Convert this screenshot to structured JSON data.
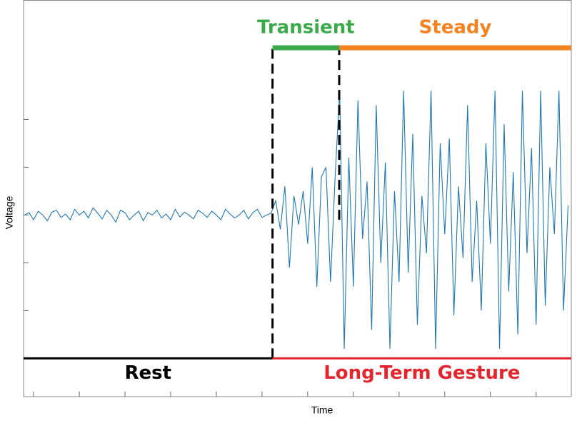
{
  "chart_data": {
    "type": "line",
    "x_label": "Time",
    "y_label": "Voltage",
    "xlim": [
      -22,
      1177
    ],
    "ylim": [
      -3.8,
      4.5
    ],
    "xticks": [
      0,
      100,
      200,
      300,
      400,
      500,
      600,
      700,
      800,
      900,
      1000,
      1100
    ],
    "yticks": [
      -2,
      -1,
      0,
      1,
      2
    ],
    "series": [
      {
        "color": "#1f77b4",
        "x": [
          -20,
          -10,
          0,
          10,
          20,
          30,
          40,
          50,
          60,
          70,
          80,
          90,
          100,
          110,
          120,
          130,
          140,
          150,
          160,
          170,
          180,
          190,
          200,
          210,
          220,
          230,
          240,
          250,
          260,
          270,
          280,
          290,
          300,
          310,
          320,
          330,
          340,
          350,
          360,
          370,
          380,
          390,
          400,
          410,
          420,
          430,
          440,
          450,
          460,
          470,
          480,
          490,
          500,
          510,
          520,
          530,
          540,
          550,
          560,
          570,
          580,
          590,
          600,
          610,
          620,
          630,
          640,
          650,
          660,
          670,
          680,
          690,
          700,
          710,
          720,
          730,
          740,
          750,
          760,
          770,
          780,
          790,
          800,
          810,
          820,
          830,
          840,
          850,
          860,
          870,
          880,
          890,
          900,
          910,
          920,
          930,
          940,
          950,
          960,
          970,
          980,
          990,
          1000,
          1010,
          1020,
          1030,
          1040,
          1050,
          1060,
          1070,
          1080,
          1090,
          1100,
          1110,
          1120,
          1130,
          1140,
          1150,
          1160,
          1170
        ],
        "values": [
          0.0,
          0.05,
          -0.1,
          0.08,
          0.0,
          -0.12,
          0.06,
          0.1,
          -0.05,
          0.02,
          -0.1,
          0.12,
          0.0,
          0.08,
          -0.06,
          0.15,
          0.04,
          -0.08,
          0.1,
          0.0,
          -0.15,
          0.1,
          0.05,
          -0.1,
          0.0,
          0.08,
          -0.12,
          0.05,
          0.0,
          0.1,
          -0.06,
          0.02,
          -0.1,
          0.12,
          -0.04,
          0.06,
          0.0,
          -0.08,
          0.1,
          0.04,
          -0.05,
          0.08,
          0.0,
          -0.1,
          0.12,
          0.02,
          -0.06,
          0.0,
          0.1,
          -0.08,
          0.05,
          0.12,
          -0.05,
          0.0,
          0.04,
          0.3,
          -0.3,
          0.6,
          -1.1,
          0.4,
          -0.2,
          0.5,
          -0.6,
          1.0,
          -1.5,
          0.8,
          1.0,
          -1.4,
          0.8,
          2.6,
          -2.8,
          1.2,
          -1.5,
          2.4,
          -0.5,
          0.7,
          -2.4,
          2.3,
          -1.0,
          1.1,
          -2.8,
          0.5,
          -1.4,
          2.6,
          -1.2,
          1.7,
          -2.3,
          0.4,
          -0.8,
          2.6,
          -2.8,
          1.5,
          -0.4,
          1.6,
          -2.1,
          0.6,
          -0.9,
          2.3,
          -1.4,
          0.3,
          -2.0,
          1.5,
          -0.6,
          2.6,
          -2.8,
          1.9,
          -1.6,
          0.9,
          -2.5,
          2.6,
          -0.8,
          1.4,
          -2.3,
          2.6,
          -1.9,
          1.0,
          -0.4,
          2.6,
          -2.0,
          0.2
        ]
      }
    ],
    "phases": [
      {
        "label": "Transient",
        "start": 523,
        "end": 669,
        "level": 3.5,
        "color": "#3aaa4a"
      },
      {
        "label": "Steady",
        "start": 669,
        "end": 1177,
        "level": 3.5,
        "color": "#f58220"
      }
    ],
    "regions": [
      {
        "label": "Rest",
        "start": -22,
        "end": 523,
        "level": -3,
        "color": "#000000"
      },
      {
        "label": "Long-Term Gesture",
        "start": 523,
        "end": 1177,
        "level": -3,
        "color": "#e3262e"
      }
    ],
    "boundaries": [
      {
        "x": 523,
        "from": -3,
        "to": 3.5
      },
      {
        "x": 669,
        "from": -0.1,
        "to": 3.5
      }
    ]
  }
}
